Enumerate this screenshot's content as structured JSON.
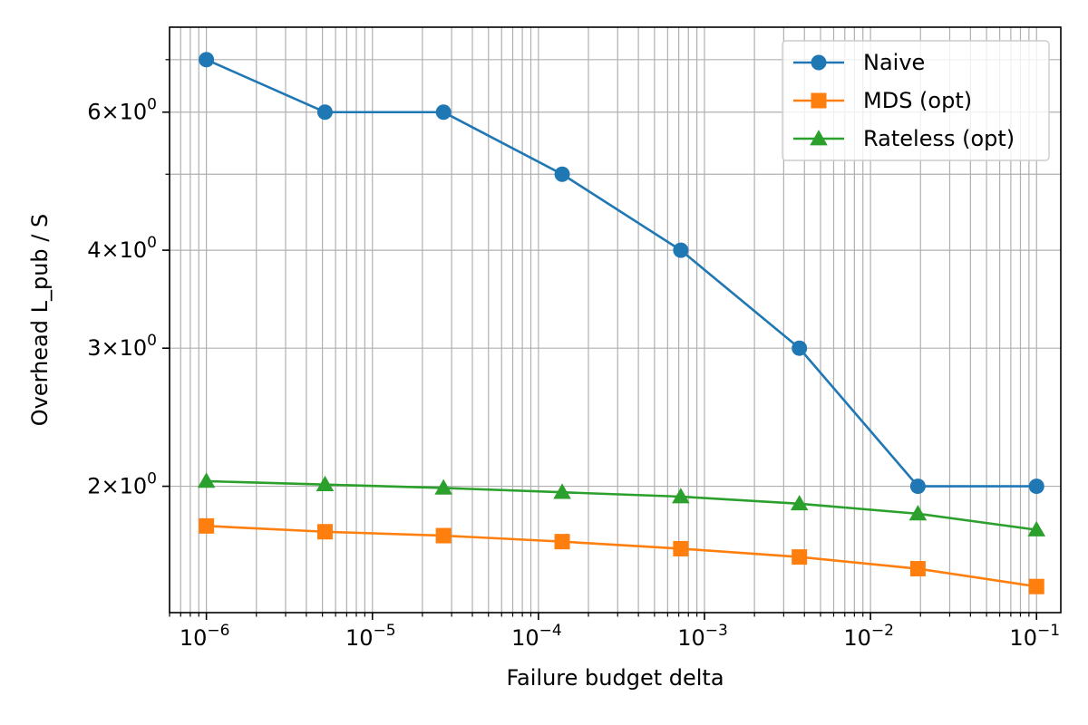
{
  "chart_data": {
    "type": "line",
    "title": "",
    "xlabel": "Failure budget delta",
    "ylabel": "Overhead L_pub / S",
    "xscale": "log",
    "yscale": "log",
    "xlim": [
      6e-07,
      0.14
    ],
    "ylim": [
      1.38,
      7.7
    ],
    "grid": true,
    "legend_position": "top-right",
    "x": [
      1e-06,
      5.18e-06,
      2.68e-05,
      0.000139,
      0.00072,
      0.00373,
      0.0193,
      0.1
    ],
    "series": [
      {
        "name": "Naive",
        "color": "#1f77b4",
        "marker": "circle",
        "values": [
          7.0,
          6.0,
          6.0,
          5.0,
          4.0,
          3.0,
          2.0,
          2.0
        ]
      },
      {
        "name": "MDS (opt)",
        "color": "#ff7f0e",
        "marker": "square",
        "values": [
          1.78,
          1.75,
          1.73,
          1.7,
          1.665,
          1.625,
          1.57,
          1.49
        ]
      },
      {
        "name": "Rateless (opt)",
        "color": "#2ca02c",
        "marker": "triangle",
        "values": [
          2.03,
          2.01,
          1.99,
          1.965,
          1.94,
          1.9,
          1.845,
          1.76
        ]
      }
    ],
    "x_ticks": [
      {
        "base": "10",
        "exp": "−6",
        "value": 1e-06
      },
      {
        "base": "10",
        "exp": "−5",
        "value": 1e-05
      },
      {
        "base": "10",
        "exp": "−4",
        "value": 0.0001
      },
      {
        "base": "10",
        "exp": "−3",
        "value": 0.001
      },
      {
        "base": "10",
        "exp": "−2",
        "value": 0.01
      },
      {
        "base": "10",
        "exp": "−1",
        "value": 0.1
      }
    ],
    "y_ticks": [
      {
        "mantissa": "2",
        "times": "×",
        "base": "10",
        "exp": "0",
        "value": 2
      },
      {
        "mantissa": "3",
        "times": "×",
        "base": "10",
        "exp": "0",
        "value": 3
      },
      {
        "mantissa": "4",
        "times": "×",
        "base": "10",
        "exp": "0",
        "value": 4
      },
      {
        "mantissa": "6",
        "times": "×",
        "base": "10",
        "exp": "0",
        "value": 6
      }
    ],
    "y_minor_ticks": [
      5,
      7
    ]
  }
}
